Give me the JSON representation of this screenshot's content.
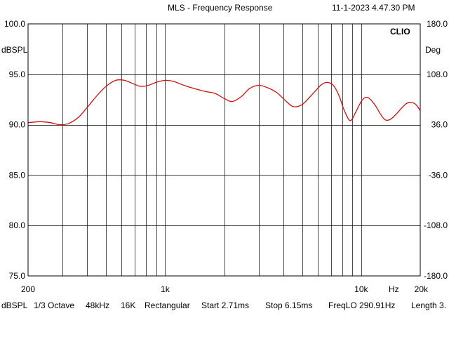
{
  "header": {
    "title": "MLS - Frequency Response",
    "timestamp": "11-1-2023 4.47.30 PM"
  },
  "brand": "CLIO",
  "footer": {
    "unit": "dBSPL",
    "smoothing": "1/3 Octave",
    "sample_rate": "48kHz",
    "size": "16K",
    "window": "Rectangular",
    "start": "Start 2.71ms",
    "stop": "Stop 6.15ms",
    "freqlo": "FreqLO 290.91Hz",
    "length": "Length 3."
  },
  "colors": {
    "trace": "#cc1111",
    "grid": "#000000",
    "background": "#ffffff"
  },
  "chart_data": {
    "type": "line",
    "xscale": "log",
    "xlim": [
      200,
      20000
    ],
    "ylim": [
      75,
      100
    ],
    "y2lim": [
      -180,
      180
    ],
    "ylabel": "dBSPL",
    "y2label": "Deg",
    "xlabel": "Hz",
    "grid": true,
    "x_tick_labels": [
      {
        "value": 200,
        "label": "200"
      },
      {
        "value": 1000,
        "label": "1k"
      },
      {
        "value": 10000,
        "label": "10k"
      },
      {
        "value": 20000,
        "label": "20k"
      }
    ],
    "x_minor_grid": [
      300,
      400,
      500,
      600,
      700,
      800,
      900,
      2000,
      3000,
      4000,
      5000,
      6000,
      7000,
      8000,
      9000
    ],
    "y_tick_labels": [
      "100.0",
      "95.0",
      "90.0",
      "85.0",
      "80.0",
      "75.0"
    ],
    "y2_tick_labels": [
      "180.0",
      "108.0",
      "36.0",
      "-36.0",
      "-108.0",
      "-180.0"
    ],
    "series": [
      {
        "x": [
          200,
          230,
          260,
          290,
          320,
          360,
          400,
          450,
          500,
          560,
          620,
          680,
          750,
          820,
          900,
          1000,
          1100,
          1250,
          1400,
          1600,
          1800,
          2000,
          2200,
          2450,
          2700,
          3000,
          3300,
          3700,
          4100,
          4500,
          5000,
          5500,
          6000,
          6300,
          6700,
          7200,
          7700,
          8200,
          8800,
          9400,
          10000,
          10500,
          11000,
          11800,
          12500,
          13200,
          14000,
          15000,
          16000,
          17000,
          18000,
          19000,
          20000
        ],
        "y": [
          90.2,
          90.3,
          90.2,
          90.0,
          90.1,
          90.7,
          91.7,
          92.9,
          93.8,
          94.4,
          94.4,
          94.1,
          93.8,
          93.9,
          94.2,
          94.4,
          94.3,
          93.9,
          93.6,
          93.3,
          93.1,
          92.6,
          92.3,
          92.8,
          93.6,
          93.9,
          93.7,
          93.2,
          92.4,
          91.8,
          92.0,
          92.8,
          93.6,
          94.0,
          94.2,
          93.9,
          92.9,
          91.4,
          90.4,
          91.3,
          92.3,
          92.7,
          92.6,
          91.9,
          91.1,
          90.5,
          90.5,
          91.0,
          91.6,
          92.1,
          92.2,
          92.0,
          91.4
        ]
      }
    ]
  }
}
